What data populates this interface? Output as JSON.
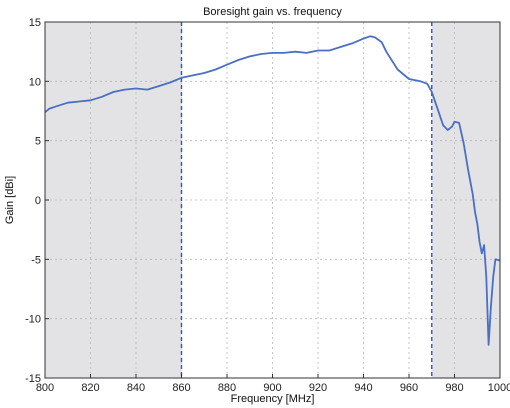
{
  "chart_data": {
    "type": "line",
    "title": "Boresight gain vs. frequency",
    "xlabel": "Frequency [MHz]",
    "ylabel": "Gain [dBi]",
    "xlim": [
      800,
      1000
    ],
    "ylim": [
      -15,
      15
    ],
    "grid": true,
    "xticks": [
      800,
      820,
      840,
      860,
      880,
      900,
      920,
      940,
      960,
      980,
      1000
    ],
    "yticks": [
      -15,
      -10,
      -5,
      0,
      5,
      10,
      15
    ],
    "shaded_regions": [
      [
        800,
        860
      ],
      [
        970,
        1000
      ]
    ],
    "vertical_markers": [
      860,
      970
    ],
    "colors": {
      "line": "#4a6fc4",
      "marker": "#2f55c0",
      "shade": "#e3e2e5",
      "grid": "#b8b8b8"
    },
    "series": [
      {
        "x": [
          800,
          802,
          805,
          810,
          815,
          820,
          825,
          830,
          835,
          840,
          845,
          850,
          855,
          860,
          865,
          870,
          875,
          880,
          885,
          890,
          895,
          900,
          905,
          910,
          915,
          920,
          925,
          930,
          935,
          940,
          943,
          945,
          948,
          950,
          955,
          960,
          965,
          968,
          970,
          972,
          975,
          977,
          979,
          980,
          982,
          984,
          986,
          988,
          989,
          990,
          991,
          992,
          993,
          994,
          995,
          996,
          997,
          998,
          1000
        ],
        "y": [
          7.4,
          7.7,
          7.9,
          8.2,
          8.3,
          8.4,
          8.7,
          9.1,
          9.3,
          9.4,
          9.3,
          9.6,
          9.9,
          10.3,
          10.5,
          10.7,
          11.0,
          11.4,
          11.8,
          12.1,
          12.3,
          12.4,
          12.4,
          12.5,
          12.4,
          12.6,
          12.6,
          12.9,
          13.2,
          13.6,
          13.8,
          13.7,
          13.3,
          12.5,
          11.0,
          10.2,
          10.0,
          9.8,
          9.1,
          8.0,
          6.3,
          5.9,
          6.2,
          6.6,
          6.5,
          4.8,
          2.5,
          0.5,
          -1.0,
          -2.0,
          -3.5,
          -4.5,
          -3.8,
          -6.5,
          -12.2,
          -9.0,
          -6.5,
          -5.0,
          -5.1
        ]
      }
    ]
  }
}
